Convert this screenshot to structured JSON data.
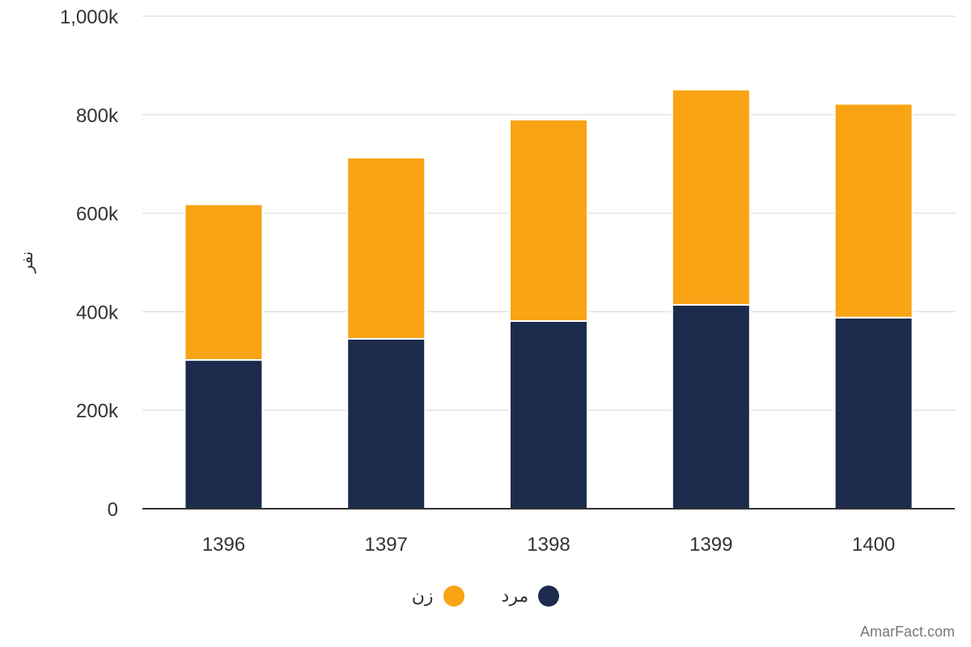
{
  "chart_data": {
    "type": "bar",
    "stacked": true,
    "categories": [
      "1396",
      "1397",
      "1398",
      "1399",
      "1400"
    ],
    "series": [
      {
        "name": "مرد",
        "color": "#1c2b4b",
        "values": [
          302000,
          345000,
          381000,
          414000,
          388000
        ]
      },
      {
        "name": "زن",
        "color": "#f9a315",
        "values": [
          316000,
          368000,
          409000,
          437000,
          434000
        ]
      }
    ],
    "title": "",
    "xlabel": "",
    "ylabel": "نفر",
    "ylim": [
      0,
      1000000
    ],
    "yticks": [
      0,
      200000,
      400000,
      600000,
      800000,
      1000000
    ],
    "ytick_labels": [
      "0",
      "200k",
      "400k",
      "600k",
      "800k",
      "1,000k"
    ],
    "grid": true,
    "legend_position": "bottom-center"
  },
  "legend": {
    "items": [
      {
        "label": "مرد",
        "color": "#1c2b4b"
      },
      {
        "label": "زن",
        "color": "#f9a315"
      }
    ]
  },
  "credit": "AmarFact.com"
}
